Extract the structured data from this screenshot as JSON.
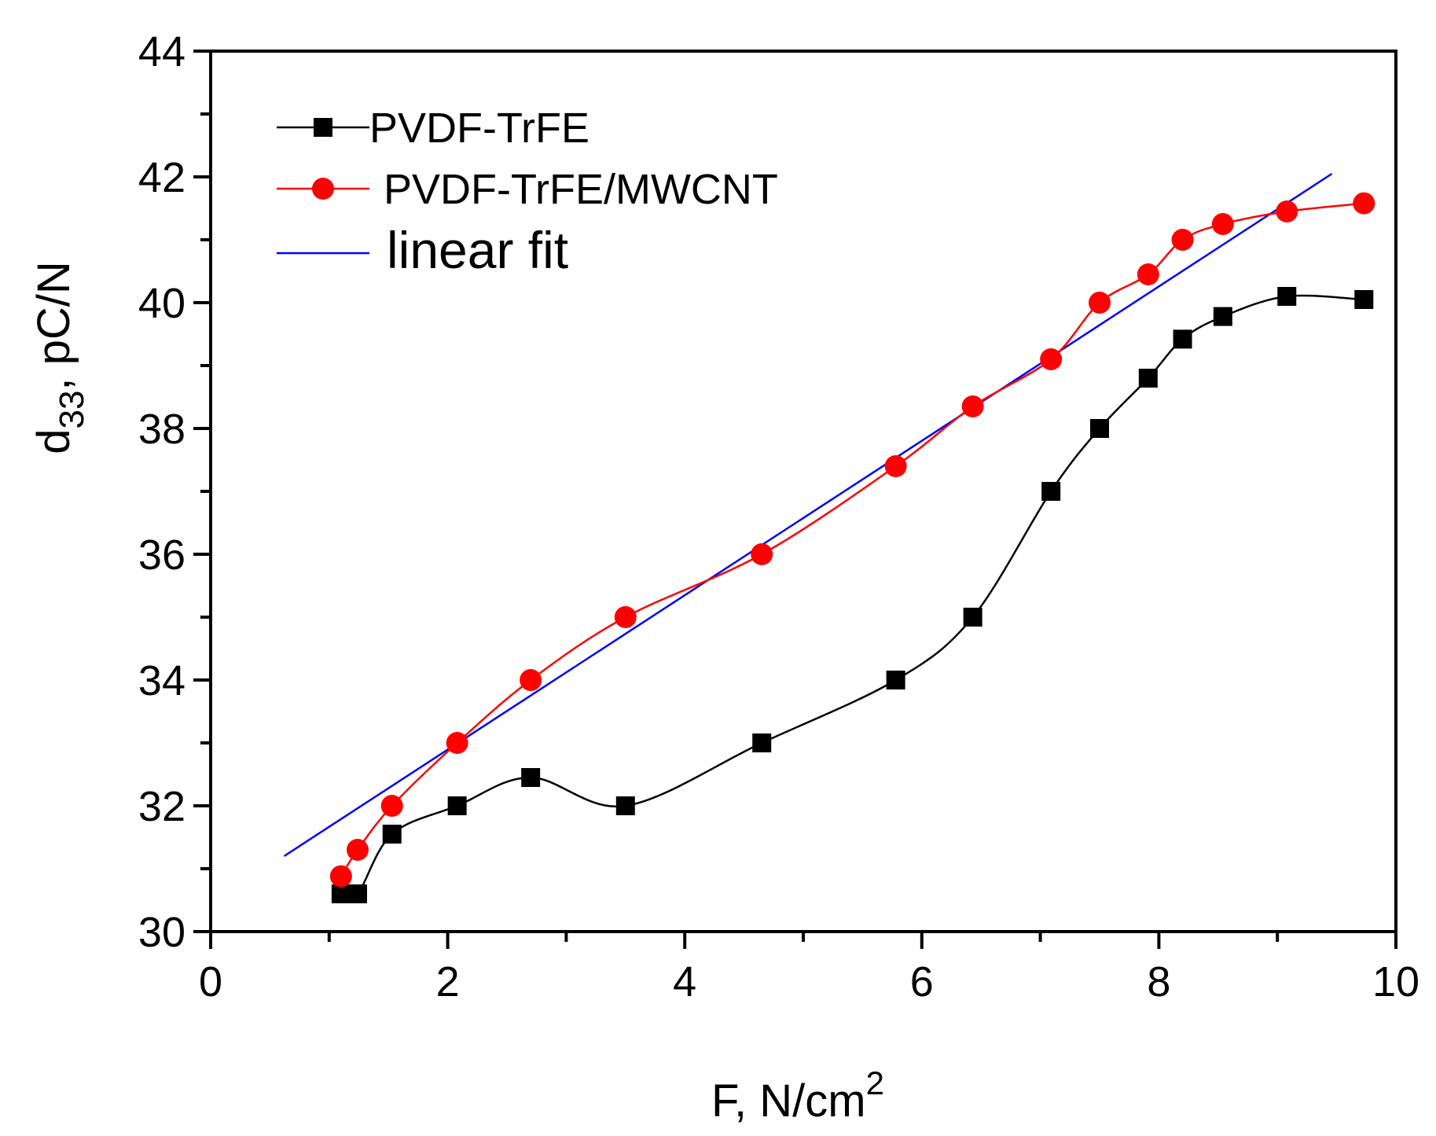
{
  "chart_data": {
    "type": "line",
    "title": "",
    "xlabel": "F, N/cm",
    "xlabel_sup": "2",
    "ylabel": "d",
    "ylabel_sub": "33",
    "ylabel_rest": ", pC/N",
    "xlim": [
      0,
      10
    ],
    "ylim": [
      30,
      44
    ],
    "x_ticks": [
      "0",
      "2",
      "4",
      "6",
      "8",
      "10"
    ],
    "y_ticks": [
      "30",
      "32",
      "34",
      "36",
      "38",
      "40",
      "42",
      "44"
    ],
    "grid": false,
    "legend_position": "top-left",
    "series": [
      {
        "name": "PVDF-TrFE",
        "color": "#000000",
        "marker": "square",
        "smooth": true,
        "x": [
          1.1,
          1.24,
          1.53,
          2.08,
          2.7,
          3.5,
          4.65,
          5.78,
          6.43,
          7.09,
          7.5,
          7.91,
          8.2,
          8.54,
          9.08,
          9.73
        ],
        "y": [
          30.6,
          30.6,
          31.55,
          32.0,
          32.45,
          32.0,
          33.0,
          34.0,
          35.0,
          37.0,
          38.0,
          38.8,
          39.42,
          39.78,
          40.1,
          40.05
        ]
      },
      {
        "name": "PVDF-TrFE/MWCNT",
        "color": "#ff0000",
        "marker": "circle",
        "smooth": true,
        "x": [
          1.1,
          1.24,
          1.53,
          2.08,
          2.7,
          3.5,
          4.65,
          5.78,
          6.43,
          7.09,
          7.5,
          7.91,
          8.2,
          8.54,
          9.08,
          9.73
        ],
        "y": [
          30.88,
          31.3,
          32.0,
          33.0,
          34.0,
          35.0,
          36.0,
          37.4,
          38.35,
          39.1,
          40.0,
          40.45,
          41.0,
          41.25,
          41.45,
          41.58
        ]
      },
      {
        "name": "linear fit",
        "color": "#0000ff",
        "marker": "none",
        "smooth": false,
        "x": [
          0.62,
          9.46
        ],
        "y": [
          31.2,
          42.05
        ]
      }
    ]
  }
}
